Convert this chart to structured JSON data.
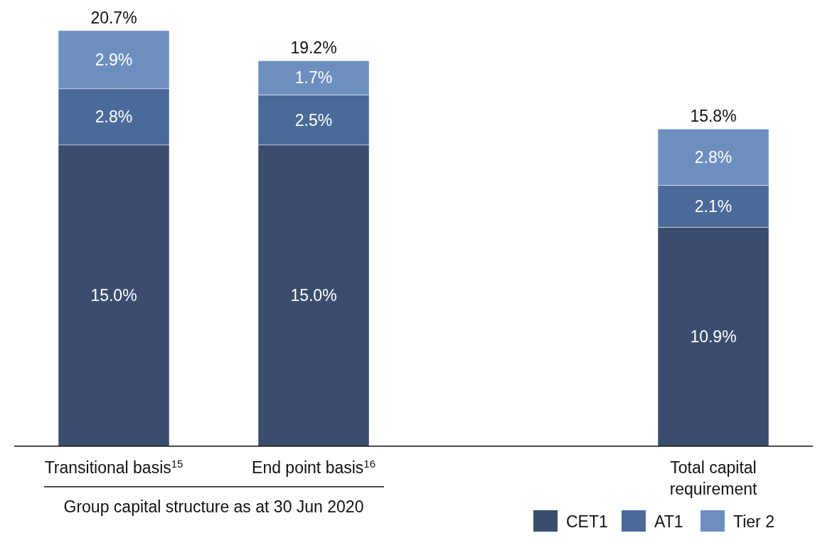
{
  "chart_data": {
    "type": "bar",
    "stacked": true,
    "categories": [
      "Transitional basis$^{15}$",
      "End point basis$^{16}$",
      null,
      "Total capital requirement"
    ],
    "series": [
      {
        "name": "CET1",
        "color": "#3a4d6e",
        "values": [
          15.0,
          15.0,
          null,
          10.9
        ],
        "value_labels": [
          "15.0%",
          "15.0%",
          null,
          "10.9%"
        ]
      },
      {
        "name": "AT1",
        "color": "#4a6a99",
        "values": [
          2.8,
          2.5,
          null,
          2.1
        ],
        "value_labels": [
          "2.8%",
          "2.5%",
          null,
          "2.1%"
        ]
      },
      {
        "name": "Tier 2",
        "color": "#6d8fbf",
        "values": [
          2.9,
          1.7,
          null,
          2.8
        ],
        "value_labels": [
          "2.9%",
          "1.7%",
          null,
          "2.8%"
        ]
      }
    ],
    "totals": [
      "20.7%",
      "19.2%",
      null,
      "15.8%"
    ],
    "annotations": [
      "Group capital structure as at 30 Jun 2020"
    ],
    "legend": "bottom right"
  }
}
